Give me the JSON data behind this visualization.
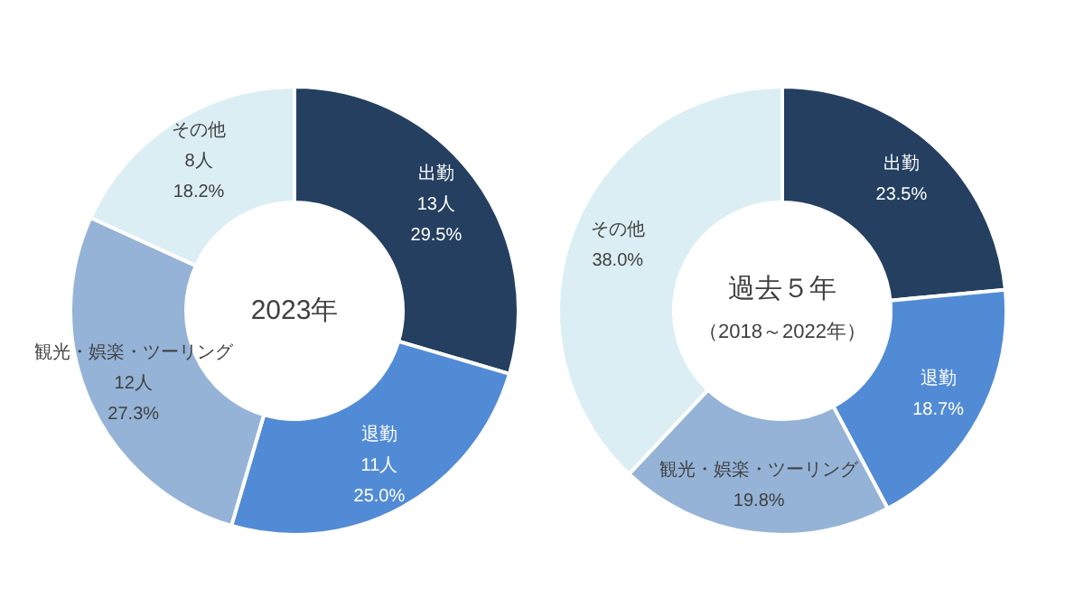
{
  "chart_data": [
    {
      "type": "donut",
      "title": "2023年",
      "categories": [
        "出勤",
        "退勤",
        "観光・娯楽・ツーリング",
        "その他"
      ],
      "values": [
        13,
        11,
        12,
        8
      ],
      "colors": [
        "#243f60",
        "#528bd5",
        "#95b3d7",
        "#dbeef4"
      ],
      "value_labels": [
        "13人\n29.5%",
        "11人\n25.0%",
        "12人\n27.3%",
        "8人\n18.2%"
      ]
    },
    {
      "type": "donut",
      "title": "過去５年",
      "subtitle": "（2018～2022年）",
      "categories": [
        "出勤",
        "退勤",
        "観光・娯楽・ツーリング",
        "その他"
      ],
      "values": [
        23.5,
        18.7,
        19.8,
        38.0
      ],
      "colors": [
        "#243f60",
        "#528bd5",
        "#95b3d7",
        "#dbeef4"
      ],
      "value_labels": [
        "23.5%",
        "18.7%",
        "19.8%",
        "38.0%"
      ]
    }
  ]
}
